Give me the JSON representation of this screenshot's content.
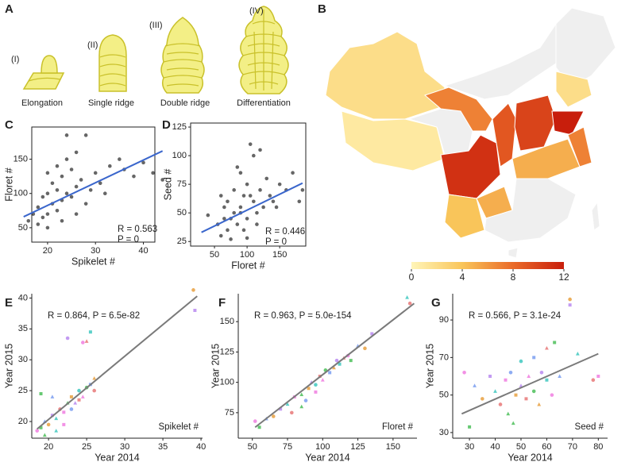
{
  "diagram": {
    "panel_label": "A",
    "stages": [
      {
        "numeral": "(I)",
        "label": "Elongation"
      },
      {
        "numeral": "(II)",
        "label": "Single ridge"
      },
      {
        "numeral": "(III)",
        "label": "Double ridge"
      },
      {
        "numeral": "(IV)",
        "label": "Differentiation"
      }
    ]
  },
  "chart_data": [
    {
      "type": "choropleth",
      "panel_label": "B",
      "values": [
        2,
        1,
        null,
        7,
        null,
        null,
        2,
        11,
        9,
        10,
        12,
        5,
        7,
        4,
        5,
        null,
        null,
        null
      ],
      "colormap": [
        "#fff5b8",
        "#f9c55a",
        "#ea6a28",
        "#c81e0c"
      ],
      "missing_color": "#efefef",
      "clim": [
        0,
        12
      ],
      "cticks": [
        0,
        4,
        8,
        12
      ]
    },
    {
      "type": "scatter",
      "panel_label": "C",
      "xlabel": "Spikelet #",
      "ylabel": "Floret #",
      "frame": true,
      "x": [
        16,
        17,
        18,
        18,
        19,
        19,
        20,
        20,
        20,
        21,
        21,
        22,
        22,
        22,
        23,
        23,
        24,
        24,
        25,
        25,
        26,
        26,
        27,
        28,
        29,
        30,
        31,
        33,
        35,
        36,
        38,
        40,
        42,
        44,
        28,
        32,
        24,
        20,
        26,
        23
      ],
      "y": [
        60,
        70,
        55,
        80,
        65,
        95,
        70,
        100,
        130,
        85,
        115,
        75,
        105,
        140,
        90,
        125,
        100,
        150,
        95,
        135,
        110,
        160,
        120,
        185,
        105,
        130,
        115,
        140,
        150,
        135,
        125,
        145,
        130,
        120,
        85,
        100,
        185,
        50,
        70,
        60
      ],
      "colors": [
        "#000000"
      ],
      "xlim": [
        16.7,
        42.4
      ],
      "ylim": [
        29,
        197
      ],
      "xticks": [
        20,
        30,
        40
      ],
      "yticks": [
        50,
        100,
        150
      ],
      "fit": {
        "x": [
          15,
          44
        ],
        "y": [
          66,
          162
        ],
        "color": "#3a66cc"
      },
      "annotations": [
        "R = 0.563",
        "P = 0"
      ]
    },
    {
      "type": "scatter",
      "panel_label": "D",
      "xlabel": "Floret #",
      "ylabel": "Seed #",
      "frame": true,
      "x": [
        40,
        55,
        60,
        65,
        70,
        70,
        75,
        80,
        80,
        85,
        90,
        90,
        95,
        100,
        100,
        105,
        110,
        110,
        115,
        120,
        125,
        130,
        135,
        140,
        150,
        160,
        170,
        180,
        95,
        85,
        75,
        100,
        105,
        65,
        115,
        90,
        120,
        145,
        60,
        185
      ],
      "y": [
        48,
        40,
        30,
        55,
        35,
        60,
        45,
        50,
        70,
        40,
        55,
        85,
        65,
        45,
        75,
        110,
        60,
        100,
        50,
        70,
        55,
        80,
        65,
        60,
        75,
        70,
        85,
        60,
        35,
        90,
        27,
        28,
        65,
        45,
        40,
        50,
        105,
        55,
        65,
        70
      ],
      "colors": [
        "#000000"
      ],
      "xlim": [
        13.4,
        190
      ],
      "ylim": [
        21,
        128.5
      ],
      "xticks": [
        50,
        100,
        150
      ],
      "yticks": [
        25,
        50,
        75,
        100,
        125
      ],
      "fit": {
        "x": [
          30,
          185
        ],
        "y": [
          33,
          76
        ],
        "color": "#3a66cc"
      },
      "annotations": [
        "R = 0.446",
        "P = 0"
      ]
    },
    {
      "type": "scatter",
      "panel_label": "E",
      "xlabel": "Year 2014",
      "ylabel": "Year 2015",
      "frame": false,
      "x": [
        18.5,
        19,
        19.5,
        20,
        20.5,
        21,
        21.5,
        22,
        22.5,
        23,
        23,
        23.5,
        24,
        24,
        24.5,
        25,
        25.5,
        26,
        22.5,
        25.5,
        25,
        24.5,
        19,
        20.5,
        39,
        39.2,
        21,
        26,
        22,
        19.5
      ],
      "y": [
        18.5,
        19,
        20,
        19.5,
        21,
        20.5,
        22,
        21.5,
        23,
        22,
        24,
        23,
        25,
        23.5,
        24,
        25.5,
        26,
        27,
        33.5,
        34.5,
        33,
        32.8,
        24.5,
        24,
        41.3,
        38,
        18.5,
        25,
        19.5,
        17.8
      ],
      "colors": [
        "#f07ee0",
        "#4cbf5a",
        "#7a9ef0",
        "#e8a040",
        "#b88af0",
        "#40c8c0",
        "#e87878"
      ],
      "xlim": [
        17.8,
        40.2
      ],
      "ylim": [
        17.3,
        40.7
      ],
      "xticks": [
        20,
        25,
        30,
        35,
        40
      ],
      "yticks": [
        20,
        25,
        30,
        35,
        40
      ],
      "fit": {
        "x": [
          18.5,
          39.5
        ],
        "y": [
          18.8,
          40.3
        ],
        "color": "#7a7a7a"
      },
      "annotations": [
        "R = 0.864, P = 6.5e-82",
        "Spikelet #"
      ]
    },
    {
      "type": "scatter",
      "panel_label": "F",
      "xlabel": "Year 2014",
      "ylabel": "Year 2015",
      "frame": false,
      "x": [
        52,
        55,
        60,
        65,
        70,
        75,
        78,
        80,
        85,
        88,
        90,
        92,
        95,
        98,
        100,
        102,
        105,
        108,
        110,
        112,
        115,
        118,
        120,
        125,
        130,
        135,
        160,
        162,
        95,
        85
      ],
      "y": [
        68,
        63,
        70,
        72,
        78,
        82,
        75,
        88,
        90,
        85,
        95,
        100,
        98,
        105,
        102,
        110,
        108,
        112,
        118,
        115,
        120,
        122,
        118,
        130,
        128,
        140,
        170,
        165,
        92,
        80
      ],
      "colors": [
        "#f07ee0",
        "#4cbf5a",
        "#7a9ef0",
        "#e8a040",
        "#b88af0",
        "#40c8c0",
        "#e87878"
      ],
      "xlim": [
        40,
        167
      ],
      "ylim": [
        54,
        173
      ],
      "xticks": [
        50,
        75,
        100,
        125,
        150
      ],
      "yticks": [
        75,
        100,
        125,
        150
      ],
      "fit": {
        "x": [
          52,
          165
        ],
        "y": [
          63,
          165
        ],
        "color": "#7a7a7a"
      },
      "annotations": [
        "R = 0.963, P = 5.0e-154",
        "Floret #"
      ]
    },
    {
      "type": "scatter",
      "panel_label": "G",
      "xlabel": "Year 2014",
      "ylabel": "Year 2015",
      "frame": false,
      "x": [
        28,
        30,
        32,
        35,
        38,
        40,
        42,
        44,
        45,
        46,
        48,
        50,
        50,
        52,
        53,
        55,
        55,
        57,
        58,
        60,
        60,
        62,
        63,
        65,
        69,
        69,
        72,
        78,
        80,
        47
      ],
      "y": [
        62,
        33,
        55,
        48,
        60,
        52,
        45,
        58,
        40,
        62,
        50,
        55,
        68,
        48,
        60,
        52,
        70,
        45,
        62,
        58,
        75,
        50,
        78,
        60,
        101,
        98,
        72,
        58,
        60,
        35
      ],
      "colors": [
        "#f07ee0",
        "#4cbf5a",
        "#7a9ef0",
        "#e8a040",
        "#b88af0",
        "#40c8c0",
        "#e87878"
      ],
      "xlim": [
        23.5,
        83.6
      ],
      "ylim": [
        27,
        104
      ],
      "xticks": [
        30,
        40,
        50,
        60,
        70,
        80
      ],
      "yticks": [
        30,
        50,
        70,
        90
      ],
      "fit": {
        "x": [
          27,
          80
        ],
        "y": [
          40,
          72
        ],
        "color": "#7a7a7a"
      },
      "annotations": [
        "R = 0.566, P = 3.1e-24",
        "Seed #"
      ]
    }
  ]
}
